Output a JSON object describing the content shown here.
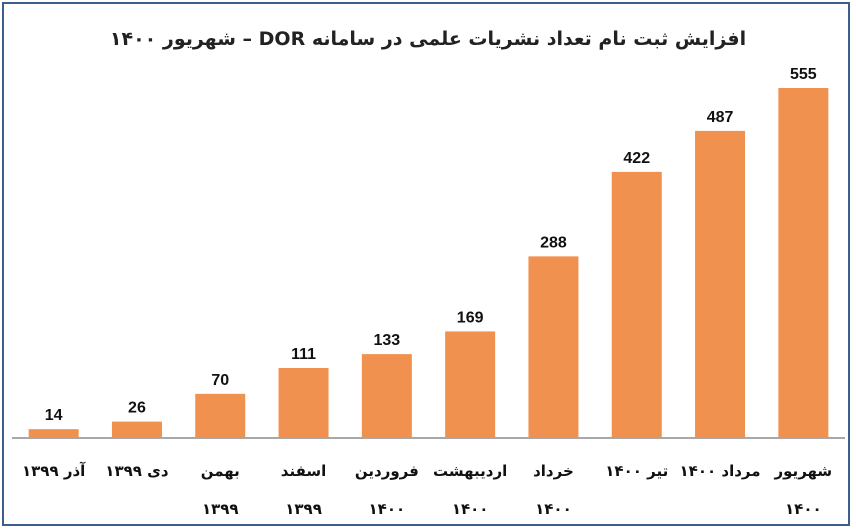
{
  "chart_data": {
    "type": "bar",
    "title": "افزایش ثبت نام تعداد نشریات علمی در سامانه  DOR – شهریور ۱۴۰۰",
    "xlabel": "",
    "ylabel": "",
    "ylim": [
      0,
      555
    ],
    "grid": false,
    "categories": [
      "آذر ۱۳۹۹",
      "دی ۱۳۹۹",
      "بهمن ۱۳۹۹",
      "اسفند ۱۳۹۹",
      "فروردین ۱۴۰۰",
      "اردیبهشت ۱۴۰۰",
      "خرداد ۱۴۰۰",
      "تیر ۱۴۰۰",
      "مرداد ۱۴۰۰",
      "شهریور ۱۴۰۰"
    ],
    "category_lines": [
      [
        "آذر ۱۳۹۹"
      ],
      [
        "دی ۱۳۹۹"
      ],
      [
        "بهمن",
        "۱۳۹۹"
      ],
      [
        "اسفند",
        "۱۳۹۹"
      ],
      [
        "فروردین",
        "۱۴۰۰"
      ],
      [
        "اردیبهشت",
        "۱۴۰۰"
      ],
      [
        "خرداد",
        "۱۴۰۰"
      ],
      [
        "تیر ۱۴۰۰"
      ],
      [
        "مرداد ۱۴۰۰"
      ],
      [
        "شهریور",
        "۱۴۰۰"
      ]
    ],
    "values": [
      14,
      26,
      70,
      111,
      133,
      169,
      288,
      422,
      487,
      555
    ],
    "bar_color": "#f0914f",
    "axis_color": "#8c8c8c",
    "frame_color": "#3b5f8a"
  }
}
